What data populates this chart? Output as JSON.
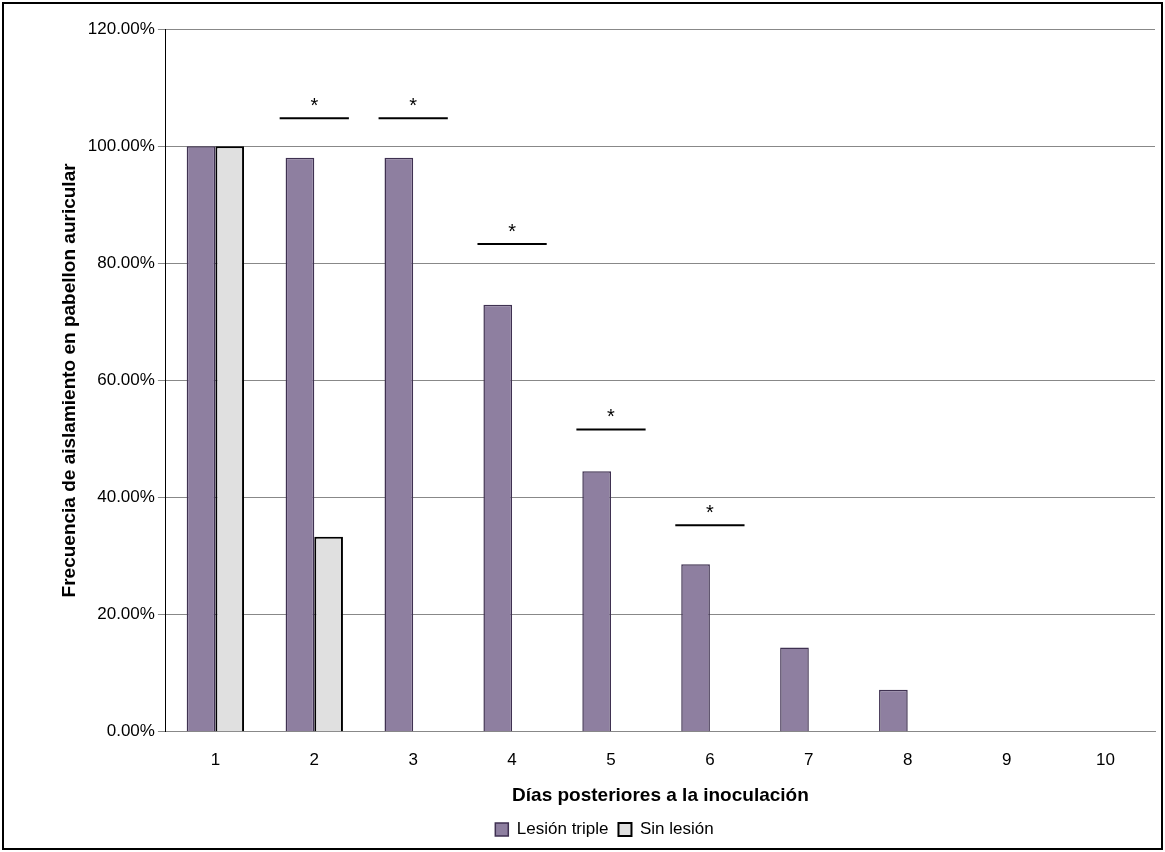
{
  "chart_data": {
    "type": "bar",
    "xlabel": "Días posteriores a la inoculación",
    "ylabel": "Frecuencia de aislamiento en pabellon auricular",
    "categories": [
      "1",
      "2",
      "3",
      "4",
      "5",
      "6",
      "7",
      "8",
      "9",
      "10"
    ],
    "series": [
      {
        "name": "Lesión triple",
        "color": "#8e7fa0",
        "values": [
          100,
          98,
          98,
          72.9,
          44.5,
          28.6,
          14.4,
          7.2,
          0,
          0
        ]
      },
      {
        "name": "Sin lesión",
        "color": "#e0e0e0",
        "values": [
          100,
          33.3,
          0,
          0,
          0,
          0,
          0,
          0,
          0,
          0
        ]
      }
    ],
    "ylim": [
      0,
      120
    ],
    "yticks": [
      {
        "value": 0,
        "label": "0.00%"
      },
      {
        "value": 20,
        "label": "20.00%"
      },
      {
        "value": 40,
        "label": "40.00%"
      },
      {
        "value": 60,
        "label": "60.00%"
      },
      {
        "value": 80,
        "label": "80.00%"
      },
      {
        "value": 100,
        "label": "100.00%"
      },
      {
        "value": 120,
        "label": "120.00%"
      }
    ],
    "annotations": [
      "*",
      "*",
      "*",
      "*",
      "*"
    ],
    "grid": "y",
    "legend": "bottom"
  }
}
